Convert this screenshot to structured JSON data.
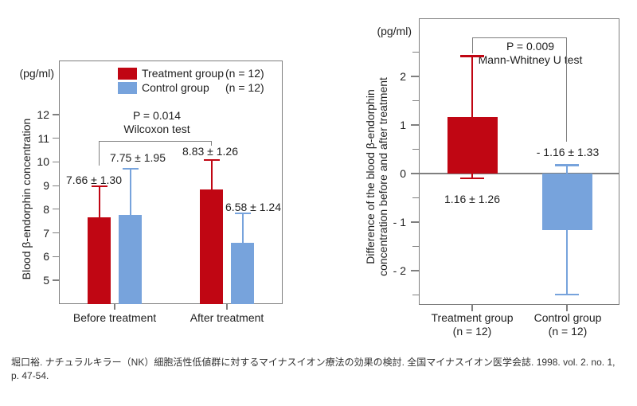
{
  "colors": {
    "treatment": "#c00613",
    "control": "#77a3dc",
    "axis": "#7f7f7f",
    "text": "#1f1f1f"
  },
  "citation": {
    "line1": "堀口裕. ナチュラルキラー（NK）細胞活性低値群に対するマイナスイオン療法の効果の検討. 全国マイナスイオン医学会誌. 1998. vol. 2. no. 1,",
    "line2": "p. 47-54."
  },
  "chart_data": [
    {
      "type": "bar",
      "title": "",
      "unit_label": "(pg/ml)",
      "ylabel": "Blood β-endorphin concentration",
      "categories": [
        "Before treatment",
        "After treatment"
      ],
      "series": [
        {
          "name": "Treatment group",
          "n_label": "(n = 12)",
          "color_key": "treatment",
          "values": [
            7.66,
            8.83
          ],
          "sd": [
            1.3,
            1.26
          ]
        },
        {
          "name": "Control group",
          "n_label": "(n = 12)",
          "color_key": "control",
          "values": [
            7.75,
            6.58
          ],
          "sd": [
            1.95,
            1.24
          ]
        }
      ],
      "error_direction": "up",
      "value_labels": [
        "7.66 ± 1.30",
        "7.75 ± 1.95",
        "8.83 ± 1.26",
        "6.58 ± 1.24"
      ],
      "annotation": {
        "p_value": "P = 0.014",
        "test_name": "Wilcoxon test"
      },
      "yticks": [
        {
          "v": 12,
          "label": "12"
        },
        {
          "v": 11,
          "label": "11"
        },
        {
          "v": 10,
          "label": "10"
        },
        {
          "v": 9,
          "label": "9"
        },
        {
          "v": 8,
          "label": "8"
        },
        {
          "v": 7,
          "label": "7"
        },
        {
          "v": 6,
          "label": "6"
        },
        {
          "v": 5,
          "label": "5"
        }
      ],
      "ylim": [
        4,
        14.3
      ],
      "legend_position": "top-inside",
      "grid": false
    },
    {
      "type": "bar",
      "title": "",
      "unit_label": "(pg/ml)",
      "ylabel_line1": "Difference of the blood β-endorphin",
      "ylabel_line2": "concentration before and after treatment",
      "bars": [
        {
          "label": "Treatment group",
          "n_label": "(n = 12)",
          "color_key": "treatment",
          "value": 1.16,
          "sd": 1.26
        },
        {
          "label": "Control group",
          "n_label": "(n = 12)",
          "color_key": "control",
          "value": -1.16,
          "sd": 1.33
        }
      ],
      "error_direction": "both",
      "value_labels": [
        "1.16 ± 1.26",
        "- 1.16 ± 1.33"
      ],
      "annotation": {
        "p_value": "P = 0.009",
        "test_name": "Mann-Whitney U test"
      },
      "yticks_major": [
        {
          "v": 2,
          "label": "2"
        },
        {
          "v": 1,
          "label": "1"
        },
        {
          "v": 0,
          "label": "0"
        },
        {
          "v": -1,
          "label": "- 1"
        },
        {
          "v": -2,
          "label": "- 2"
        }
      ],
      "yticks_minor": [
        2.5,
        1.5,
        0.5,
        -0.5,
        -1.5,
        -2.5
      ],
      "ylim": [
        -2.95,
        3.2
      ],
      "grid": false
    }
  ]
}
